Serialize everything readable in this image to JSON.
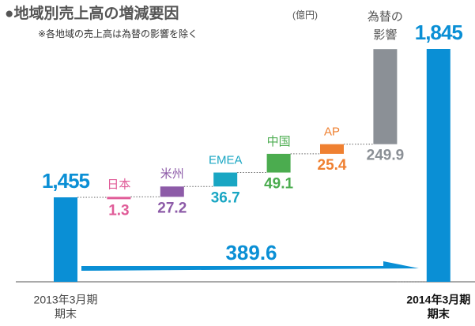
{
  "chart_data": {
    "type": "waterfall",
    "title": "●地域別売上高の増減要因",
    "unit": "(億円)",
    "subtitle": "※各地域の売上高は為替の影響を除く",
    "categories": [
      [
        "2013年3月期",
        "期末"
      ],
      "日本",
      "米州",
      "EMEA",
      "中国",
      "AP",
      [
        "為替の",
        "影響"
      ],
      [
        "2014年3月期",
        "期末"
      ]
    ],
    "measure": [
      "absolute",
      "relative",
      "relative",
      "relative",
      "relative",
      "relative",
      "relative",
      "total"
    ],
    "values": [
      1455,
      1.3,
      27.2,
      36.7,
      49.1,
      25.4,
      249.9,
      1845
    ],
    "value_labels": [
      "1,455",
      "1.3",
      "27.2",
      "36.7",
      "49.1",
      "25.4",
      "249.9",
      "1,845"
    ],
    "colors": [
      "#0a8fd5",
      "#e05c98",
      "#8d5ba8",
      "#19a6c3",
      "#4bac4f",
      "#ef8031",
      "#8b9096",
      "#0a8fd5"
    ],
    "total_change": 389.6,
    "ylim": [
      1233,
      1845
    ]
  }
}
